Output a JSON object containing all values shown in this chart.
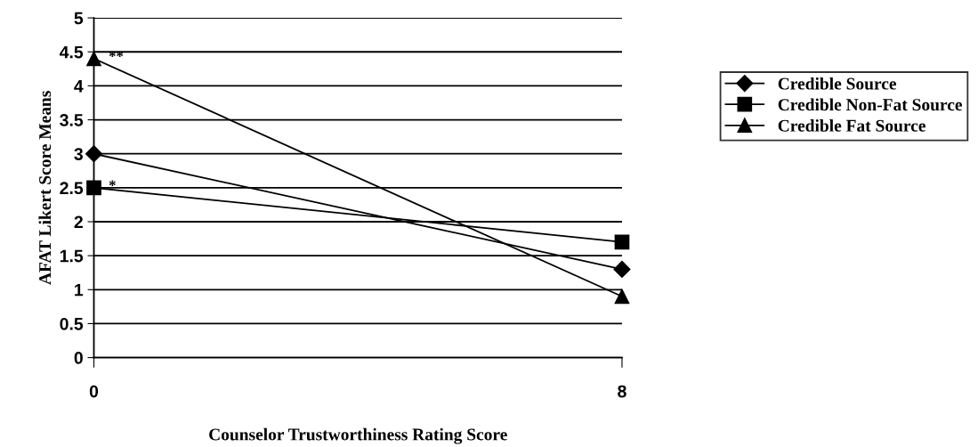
{
  "chart_data": {
    "type": "line",
    "xlabel": "Counselor Trustworthiness Rating Score",
    "ylabel": "AFAT Likert Score Means",
    "x": [
      0,
      8
    ],
    "series": [
      {
        "name": "Credible Source",
        "color": "#000000",
        "marker": "diamond",
        "values": [
          3.0,
          1.3
        ]
      },
      {
        "name": "Credible Non-Fat Source",
        "color": "#000000",
        "marker": "square",
        "values": [
          2.5,
          1.7
        ]
      },
      {
        "name": "Credible Fat Source",
        "color": "#000000",
        "marker": "triangle",
        "values": [
          4.4,
          0.9
        ]
      }
    ],
    "xlim": [
      0,
      8
    ],
    "xticks": [
      0,
      8
    ],
    "ylim": [
      0,
      5
    ],
    "yticks": [
      0,
      0.5,
      1,
      1.5,
      2,
      2.5,
      3,
      3.5,
      4,
      4.5,
      5
    ],
    "grid": "y",
    "legend": "right",
    "line_style": "solid",
    "annotations": [
      {
        "text": "**",
        "x": 0,
        "y": 4.4
      },
      {
        "text": "*",
        "x": 0,
        "y": 2.5
      }
    ]
  }
}
